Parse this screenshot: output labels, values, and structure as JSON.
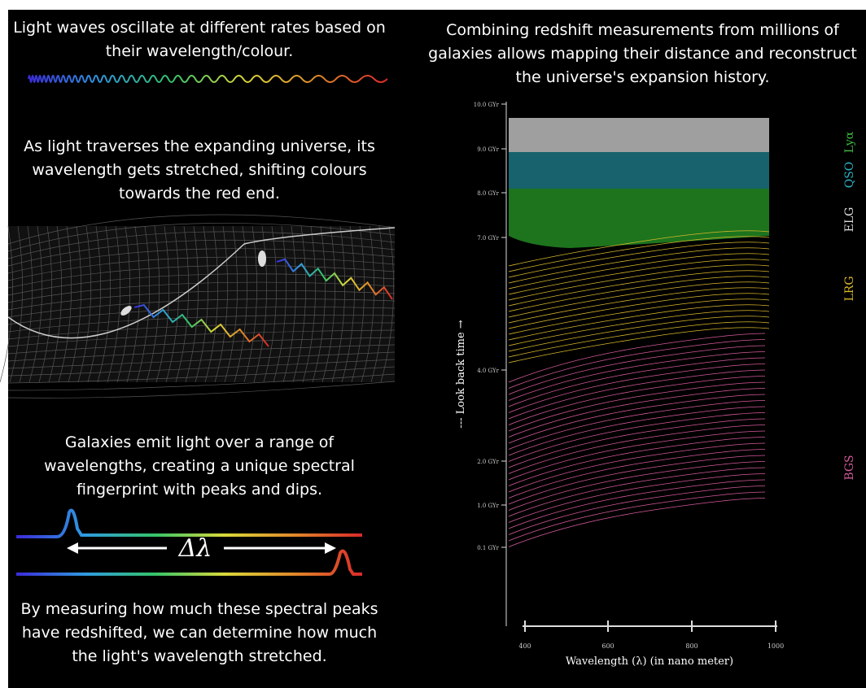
{
  "left": {
    "wave_caption": "Light waves oscillate at different rates based on their wavelength/colour.",
    "stretch_caption": "As light traverses the expanding universe, its wavelength gets stretched, shifting colours towards the red end.",
    "spectrum_caption": "Galaxies emit light over a range of wavelengths, creating a unique spectral fingerprint with peaks and dips.",
    "delta_label": "Δλ",
    "redshift_caption": "By measuring how much these spectral peaks have redshifted, we can determine how much the light's wavelength stretched."
  },
  "right": {
    "caption": "Combining redshift measurements from millions of galaxies allows mapping their distance and reconstruct the universe's expansion history.",
    "y_axis_label": "--- Look back time →",
    "x_axis_label": "Wavelength (λ) (in nano meter)",
    "y_ticks": [
      "10.0 GYr",
      "9.0 GYr",
      "8.0 GYr",
      "7.0 GYr",
      "4.0 GYr",
      "2.0 GYr",
      "1.0 GYr",
      "0.1 GYr"
    ],
    "x_ticks": [
      "400",
      "600",
      "800",
      "1000"
    ],
    "bands": [
      {
        "label": "Lyα",
        "color": "#3fbf3f"
      },
      {
        "label": "QSO",
        "color": "#2ab3c4"
      },
      {
        "label": "ELG",
        "color": "#dddddd"
      },
      {
        "label": "LRG",
        "color": "#d9b82a"
      },
      {
        "label": "BGS",
        "color": "#d45a9a"
      }
    ]
  }
}
